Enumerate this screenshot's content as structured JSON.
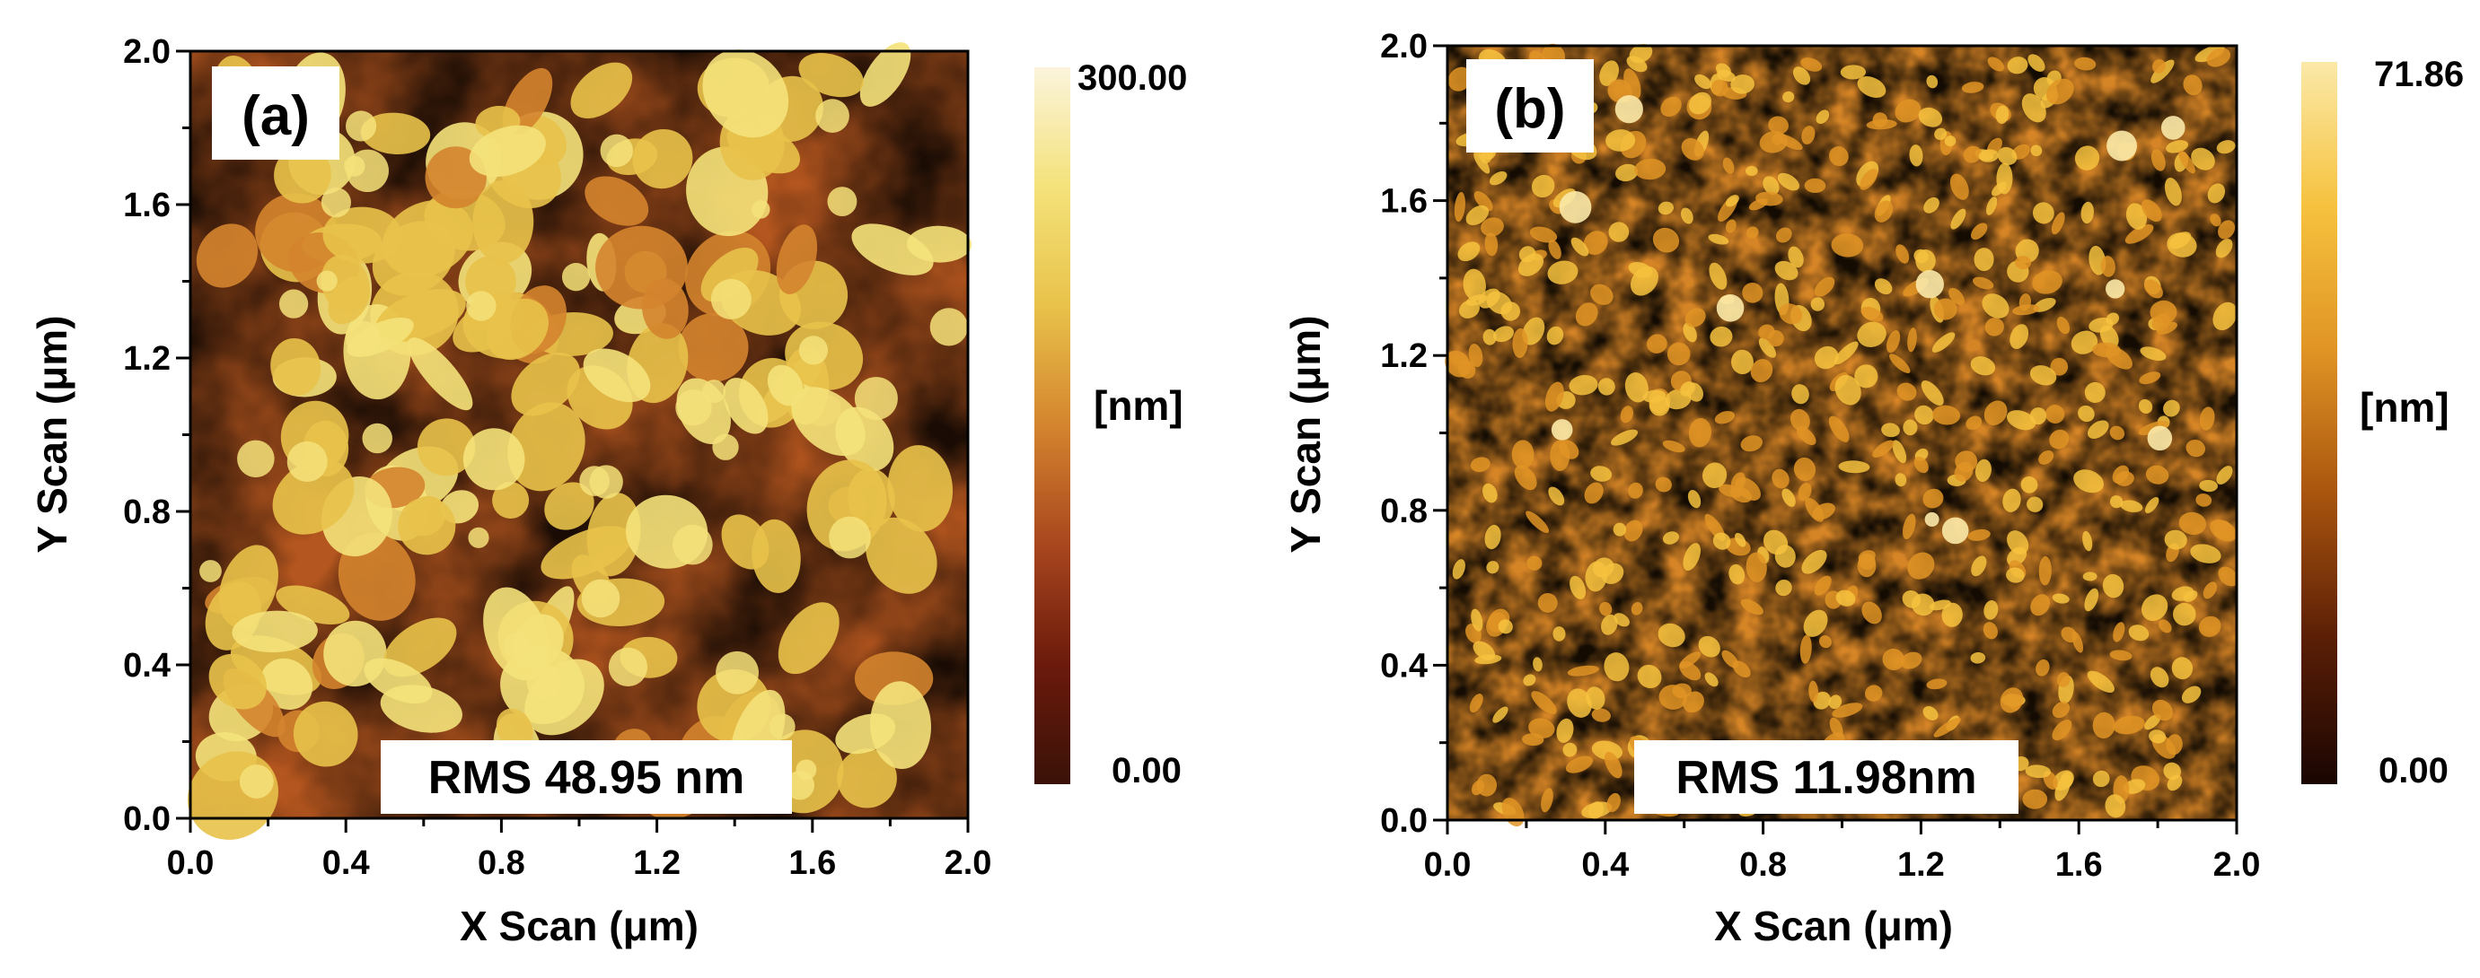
{
  "figure": {
    "panels": [
      {
        "label": "(a)",
        "rms": "RMS 48.95 nm"
      },
      {
        "label": "(b)",
        "rms": "RMS 11.98nm"
      }
    ]
  },
  "colors": {
    "cmap_a": [
      "#3a1208",
      "#6b1a0c",
      "#a8461e",
      "#d4842e",
      "#e8c24a",
      "#f4e27a",
      "#fbf4dc"
    ],
    "cmap_b": [
      "#1a0502",
      "#5a1e06",
      "#a8540e",
      "#e09424",
      "#f6c23e",
      "#fbe9a8"
    ]
  },
  "chart_data": [
    {
      "type": "heatmap",
      "title": "(a)",
      "annotation": "RMS 48.95 nm",
      "xlabel": "X Scan (μm)",
      "ylabel": "Y Scan (μm)",
      "xlim": [
        0.0,
        2.0
      ],
      "ylim": [
        0.0,
        2.0
      ],
      "xticks": [
        "0.0",
        "0.4",
        "0.8",
        "1.2",
        "1.6",
        "2.0"
      ],
      "yticks": [
        "0.0",
        "0.4",
        "0.8",
        "1.2",
        "1.6",
        "2.0"
      ],
      "colorbar": {
        "label": "[nm]",
        "min": 0.0,
        "max": 300.0,
        "min_label": "0.00",
        "max_label": "300.00"
      },
      "rms_nm": 48.95
    },
    {
      "type": "heatmap",
      "title": "(b)",
      "annotation": "RMS 11.98nm",
      "xlabel": "X Scan (μm)",
      "ylabel": "Y Scan (μm)",
      "xlim": [
        0.0,
        2.0
      ],
      "ylim": [
        0.0,
        2.0
      ],
      "xticks": [
        "0.0",
        "0.4",
        "0.8",
        "1.2",
        "1.6",
        "2.0"
      ],
      "yticks": [
        "0.0",
        "0.4",
        "0.8",
        "1.2",
        "1.6",
        "2.0"
      ],
      "colorbar": {
        "label": "[nm]",
        "min": 0.0,
        "max": 71.86,
        "min_label": "0.00",
        "max_label": "71.86"
      },
      "rms_nm": 11.98
    }
  ]
}
